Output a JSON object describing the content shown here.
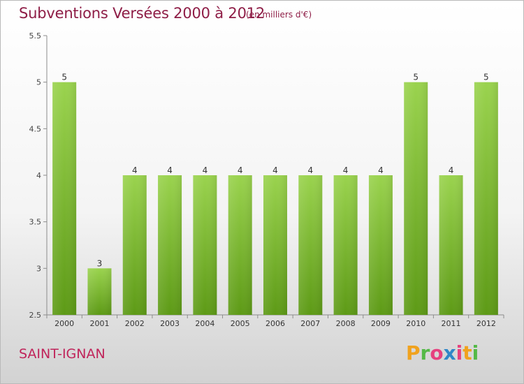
{
  "title": "Subventions Versées 2000 à 2012",
  "subtitle": "(en milliers d'€)",
  "commune": "SAINT-IGNAN",
  "logo": {
    "letters": [
      "P",
      "r",
      "o",
      "x",
      "i",
      "t",
      "i"
    ],
    "colors": [
      "#f0a21e",
      "#54b947",
      "#e6417f",
      "#2f87c8",
      "#e6417f",
      "#f0a21e",
      "#54b947"
    ]
  },
  "colors": {
    "title": "#8e1d46",
    "commune": "#c0245a",
    "bar_top": "#9ad34e",
    "bar_bottom": "#5d9a16"
  },
  "chart_data": {
    "type": "bar",
    "categories": [
      "2000",
      "2001",
      "2002",
      "2003",
      "2004",
      "2005",
      "2006",
      "2007",
      "2008",
      "2009",
      "2010",
      "2011",
      "2012"
    ],
    "values": [
      5,
      3,
      4,
      4,
      4,
      4,
      4,
      4,
      4,
      4,
      5,
      4,
      5
    ],
    "data_labels": [
      "5",
      "3",
      "4",
      "4",
      "4",
      "4",
      "4",
      "4",
      "4",
      "4",
      "5",
      "4",
      "5"
    ],
    "ylim": [
      2.5,
      5.5
    ],
    "yticks": [
      2.5,
      3,
      3.5,
      4,
      4.5,
      5,
      5.5
    ],
    "ytick_labels": [
      "2.5",
      "3",
      "3.5",
      "4",
      "4.5",
      "5",
      "5.5"
    ],
    "grid": false
  }
}
